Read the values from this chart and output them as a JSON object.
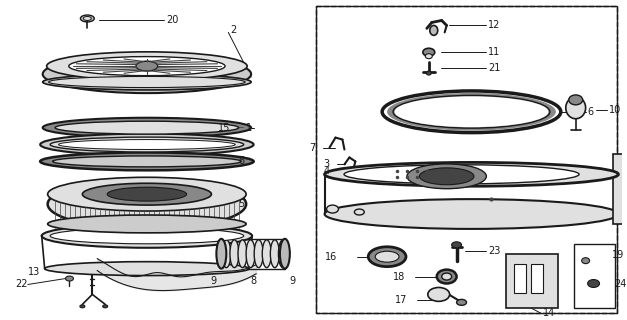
{
  "bg_color": "#ffffff",
  "line_color": "#1a1a1a",
  "gray_dark": "#444444",
  "gray_mid": "#888888",
  "gray_light": "#cccccc",
  "gray_lighter": "#e0e0e0",
  "gray_fill": "#bbbbbb"
}
